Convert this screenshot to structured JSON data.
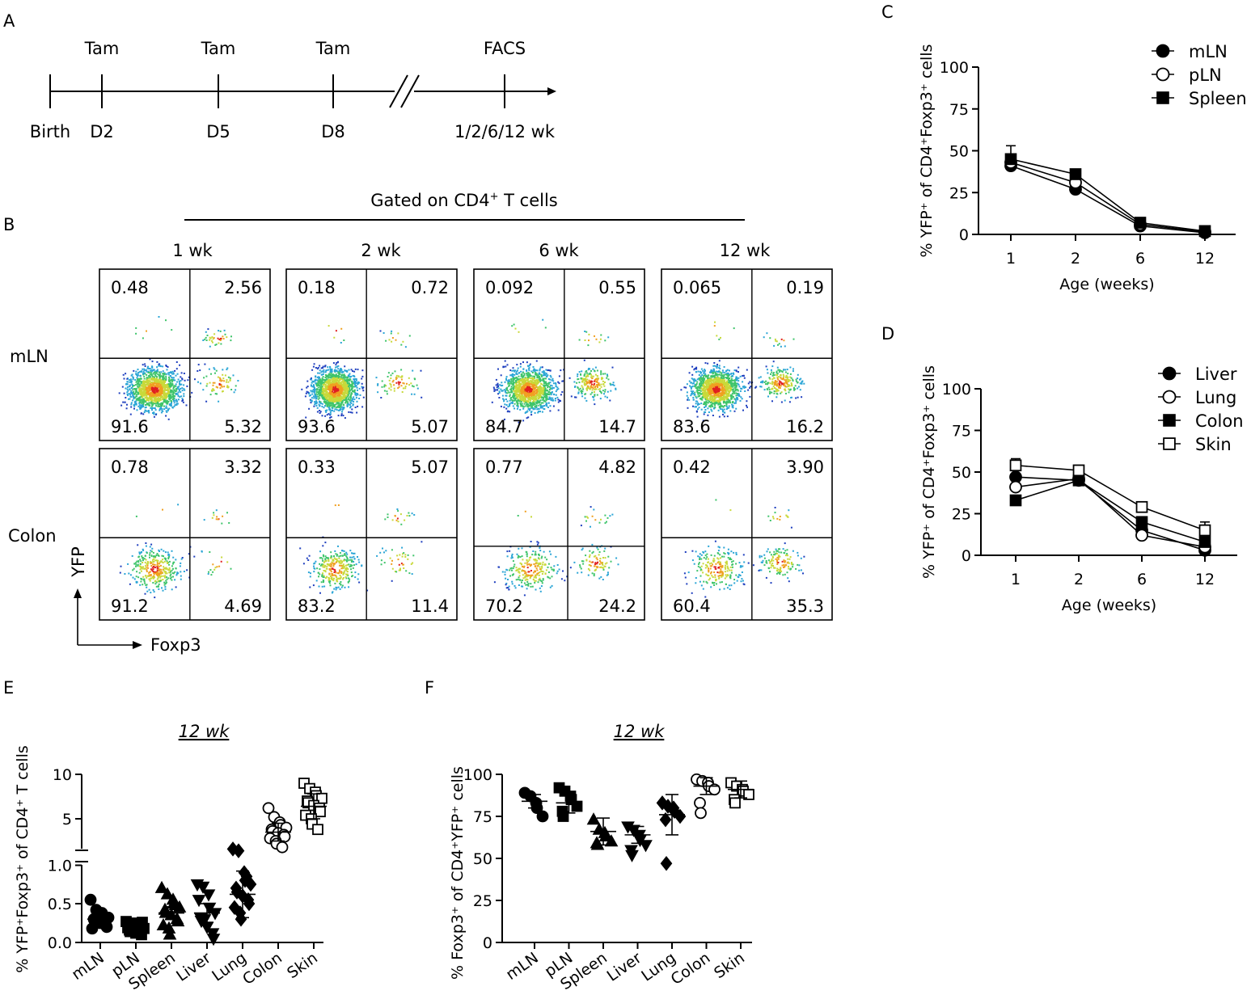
{
  "panel_labels": {
    "a": "A",
    "b": "B",
    "c": "C",
    "d": "D",
    "e": "E",
    "f": "F"
  },
  "timeline": {
    "events": [
      {
        "top": "Tam",
        "bottom": "D2"
      },
      {
        "top": "Tam",
        "bottom": "D5"
      },
      {
        "top": "Tam",
        "bottom": "D8"
      },
      {
        "top": "FACS",
        "bottom": "1/2/6/12 wk"
      }
    ],
    "start_label": "Birth"
  },
  "facs": {
    "gate_prefix": "Gated on CD4",
    "gate_sup": "+",
    "gate_suffix": " T cells",
    "columns": [
      "1 wk",
      "2 wk",
      "6 wk",
      "12 wk"
    ],
    "rows": [
      "mLN",
      "Colon"
    ],
    "y_axis": "YFP",
    "x_axis": "Foxp3",
    "quadrants": [
      [
        {
          "tl": "0.48",
          "tr": "2.56",
          "bl": "91.6",
          "br": "5.32"
        },
        {
          "tl": "0.18",
          "tr": "0.72",
          "bl": "93.6",
          "br": "5.07"
        },
        {
          "tl": "0.092",
          "tr": "0.55",
          "bl": "84.7",
          "br": "14.7"
        },
        {
          "tl": "0.065",
          "tr": "0.19",
          "bl": "83.6",
          "br": "16.2"
        }
      ],
      [
        {
          "tl": "0.78",
          "tr": "3.32",
          "bl": "91.2",
          "br": "4.69"
        },
        {
          "tl": "0.33",
          "tr": "5.07",
          "bl": "83.2",
          "br": "11.4"
        },
        {
          "tl": "0.77",
          "tr": "4.82",
          "bl": "70.2",
          "br": "24.2"
        },
        {
          "tl": "0.42",
          "tr": "3.90",
          "bl": "60.4",
          "br": "35.3"
        }
      ]
    ]
  },
  "chart_data": [
    {
      "id": "C",
      "type": "line",
      "title": "",
      "xlabel": "Age (weeks)",
      "ylabel": "% YFP⁺ of CD4⁺Foxp3⁺ cells",
      "categories": [
        "1",
        "2",
        "6",
        "12"
      ],
      "ylim": [
        0,
        100
      ],
      "yticks": [
        0,
        25,
        50,
        75,
        100
      ],
      "legend_position": "top-right",
      "series": [
        {
          "name": "mLN",
          "marker": "circle-filled",
          "values": [
            41,
            27,
            5,
            1
          ],
          "err": [
            4,
            2,
            1,
            0.5
          ]
        },
        {
          "name": "pLN",
          "marker": "circle-open",
          "values": [
            43,
            31,
            6,
            1.5
          ],
          "err": [
            5,
            2,
            1,
            0.5
          ]
        },
        {
          "name": "Spleen",
          "marker": "square-filled",
          "values": [
            45,
            36,
            7,
            2
          ],
          "err": [
            8,
            2,
            1,
            0.5
          ]
        }
      ]
    },
    {
      "id": "D",
      "type": "line",
      "title": "",
      "xlabel": "Age (weeks)",
      "ylabel": "% YFP⁺ of CD4⁺Foxp3⁺ cells",
      "categories": [
        "1",
        "2",
        "6",
        "12"
      ],
      "ylim": [
        0,
        100
      ],
      "yticks": [
        0,
        25,
        50,
        75,
        100
      ],
      "legend_position": "top-right",
      "series": [
        {
          "name": "Liver",
          "marker": "circle-filled",
          "values": [
            47,
            45,
            15,
            3
          ],
          "err": [
            4,
            2,
            2,
            1
          ]
        },
        {
          "name": "Lung",
          "marker": "circle-open",
          "values": [
            41,
            46,
            12,
            5
          ],
          "err": [
            4,
            2,
            2,
            1
          ]
        },
        {
          "name": "Colon",
          "marker": "square-filled",
          "values": [
            33,
            45,
            20,
            8
          ],
          "err": [
            3,
            2,
            3,
            2
          ]
        },
        {
          "name": "Skin",
          "marker": "square-open",
          "values": [
            54,
            51,
            29,
            15
          ],
          "err": [
            4,
            3,
            3,
            5
          ]
        }
      ]
    },
    {
      "id": "E",
      "type": "scatter",
      "title": "12 wk",
      "xlabel": "",
      "ylabel": "% YFP⁺Foxp3⁺ of CD4⁺ T cells",
      "categories": [
        "mLN",
        "pLN",
        "Spleen",
        "Liver",
        "Lung",
        "Colon",
        "Skin"
      ],
      "axis_break": {
        "lower_range": [
          0,
          1.0
        ],
        "upper_range": [
          1,
          10
        ]
      },
      "lower_yticks": [
        "0.0",
        "0.5",
        "1.0"
      ],
      "upper_yticks": [
        "5",
        "10"
      ],
      "groups": [
        {
          "name": "mLN",
          "marker": "circle-filled",
          "mean": 0.3,
          "sd": 0.06,
          "points": [
            0.55,
            0.42,
            0.38,
            0.35,
            0.32,
            0.3,
            0.28,
            0.25,
            0.22,
            0.2,
            0.18,
            0.27,
            0.33,
            0.24
          ]
        },
        {
          "name": "pLN",
          "marker": "square-filled",
          "mean": 0.2,
          "sd": 0.06,
          "points": [
            0.27,
            0.25,
            0.22,
            0.2,
            0.18,
            0.16,
            0.14,
            0.12,
            0.1,
            0.26,
            0.19,
            0.15
          ]
        },
        {
          "name": "Spleen",
          "marker": "triangle-up-filled",
          "mean": 0.38,
          "sd": 0.08,
          "points": [
            0.7,
            0.62,
            0.55,
            0.5,
            0.45,
            0.42,
            0.38,
            0.35,
            0.3,
            0.27,
            0.22,
            0.18,
            0.1,
            0.48
          ]
        },
        {
          "name": "Liver",
          "marker": "triangle-down-filled",
          "mean": 0.38,
          "sd": 0.12,
          "points": [
            0.75,
            0.72,
            0.62,
            0.45,
            0.38,
            0.32,
            0.28,
            0.2,
            0.12,
            0.05,
            0.55,
            0.3
          ]
        },
        {
          "name": "Lung",
          "marker": "diamond-filled",
          "mean": 0.62,
          "sd": 0.3,
          "points": [
            1.6,
            1.4,
            0.9,
            0.8,
            0.75,
            0.7,
            0.65,
            0.6,
            0.55,
            0.5,
            0.45,
            0.38,
            0.3,
            0.85
          ]
        },
        {
          "name": "Colon",
          "marker": "circle-open",
          "mean": 3.5,
          "sd": 1.0,
          "points": [
            6.2,
            5.2,
            4.6,
            4.3,
            4.0,
            3.8,
            3.6,
            3.4,
            3.2,
            3.0,
            2.8,
            2.5,
            2.2,
            1.8
          ]
        },
        {
          "name": "Skin",
          "marker": "square-open",
          "mean": 6.4,
          "sd": 1.4,
          "points": [
            9.0,
            8.4,
            8.0,
            7.6,
            7.3,
            7.0,
            6.8,
            6.5,
            6.2,
            5.8,
            5.4,
            5.0,
            4.4,
            3.8
          ]
        }
      ]
    },
    {
      "id": "F",
      "type": "scatter",
      "title": "12 wk",
      "xlabel": "",
      "ylabel": "% Foxp3⁺ of CD4⁺YFP⁺ cells",
      "categories": [
        "mLN",
        "pLN",
        "Spleen",
        "Liver",
        "Lung",
        "Colon",
        "Skin"
      ],
      "ylim": [
        0,
        100
      ],
      "yticks": [
        0,
        25,
        50,
        75,
        100
      ],
      "groups": [
        {
          "name": "mLN",
          "marker": "circle-filled",
          "mean": 84,
          "sd": 4,
          "points": [
            89,
            87,
            83,
            80,
            75
          ]
        },
        {
          "name": "pLN",
          "marker": "square-filled",
          "mean": 83,
          "sd": 6,
          "points": [
            92,
            90,
            87,
            85,
            81,
            78,
            75
          ]
        },
        {
          "name": "Spleen",
          "marker": "triangle-up-filled",
          "mean": 66,
          "sd": 8,
          "points": [
            73,
            67,
            65,
            63,
            60,
            59,
            58
          ]
        },
        {
          "name": "Liver",
          "marker": "triangle-down-filled",
          "mean": 64,
          "sd": 5,
          "points": [
            69,
            67,
            64,
            61,
            58,
            55,
            52
          ]
        },
        {
          "name": "Lung",
          "marker": "diamond-filled",
          "mean": 76,
          "sd": 12,
          "points": [
            83,
            81,
            80,
            78,
            75,
            73,
            47
          ]
        },
        {
          "name": "Colon",
          "marker": "circle-open",
          "mean": 93,
          "sd": 5,
          "points": [
            97,
            96,
            95,
            93,
            91,
            83,
            77
          ]
        },
        {
          "name": "Skin",
          "marker": "square-open",
          "mean": 91,
          "sd": 5,
          "points": [
            95,
            93,
            91,
            90,
            88,
            85,
            83
          ]
        }
      ]
    }
  ]
}
